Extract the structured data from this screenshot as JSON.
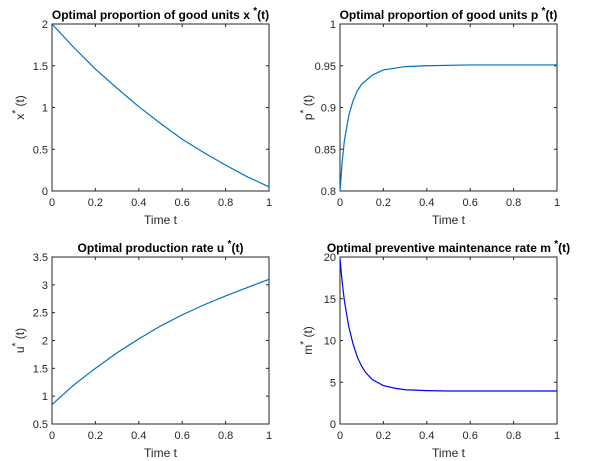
{
  "chart_data": [
    {
      "type": "line",
      "title": "Optimal proportion of good units x",
      "title_sup": "*",
      "title_suffix": "(t)",
      "xlabel": "Time t",
      "ylabel": "x",
      "ylabel_sup": "*",
      "ylabel_suffix": " (t)",
      "xlim": [
        0,
        1
      ],
      "ylim": [
        0,
        2
      ],
      "xticks": [
        0,
        0.2,
        0.4,
        0.6,
        0.8,
        1
      ],
      "xtick_labels": [
        "0",
        "0.2",
        "0.4",
        "0.6",
        "0.8",
        "1"
      ],
      "yticks": [
        0,
        0.5,
        1,
        1.5,
        2
      ],
      "ytick_labels": [
        "0",
        "0.5",
        "1",
        "1.5",
        "2"
      ],
      "grid": false,
      "series": [
        {
          "color": "#0072BD",
          "x": [
            0,
            0.1,
            0.2,
            0.3,
            0.4,
            0.5,
            0.6,
            0.7,
            0.8,
            0.9,
            1.0
          ],
          "y": [
            2.0,
            1.72,
            1.46,
            1.23,
            1.01,
            0.81,
            0.62,
            0.46,
            0.31,
            0.17,
            0.05
          ]
        }
      ]
    },
    {
      "type": "line",
      "title": "Optimal proportion of good units p",
      "title_sup": "*",
      "title_suffix": "(t)",
      "xlabel": "Time t",
      "ylabel": "p",
      "ylabel_sup": "*",
      "ylabel_suffix": " (t)",
      "xlim": [
        0,
        1
      ],
      "ylim": [
        0.8,
        1
      ],
      "xticks": [
        0,
        0.2,
        0.4,
        0.6,
        0.8,
        1
      ],
      "xtick_labels": [
        "0",
        "0.2",
        "0.4",
        "0.6",
        "0.8",
        "1"
      ],
      "yticks": [
        0.8,
        0.85,
        0.9,
        0.95,
        1
      ],
      "ytick_labels": [
        "0.8",
        "0.85",
        "0.9",
        "0.95",
        "1"
      ],
      "grid": false,
      "series": [
        {
          "color": "#0072BD",
          "x": [
            0,
            0.01,
            0.02,
            0.04,
            0.06,
            0.08,
            0.1,
            0.15,
            0.2,
            0.3,
            0.4,
            0.6,
            0.8,
            1.0
          ],
          "y": [
            0.8,
            0.835,
            0.86,
            0.89,
            0.908,
            0.92,
            0.928,
            0.939,
            0.945,
            0.949,
            0.95,
            0.951,
            0.951,
            0.951
          ]
        }
      ]
    },
    {
      "type": "line",
      "title": "Optimal production rate u",
      "title_sup": "*",
      "title_suffix": "(t)",
      "xlabel": "Time t",
      "ylabel": "u",
      "ylabel_sup": "*",
      "ylabel_suffix": " (t)",
      "xlim": [
        0,
        1
      ],
      "ylim": [
        0.5,
        3.5
      ],
      "xticks": [
        0,
        0.2,
        0.4,
        0.6,
        0.8,
        1
      ],
      "xtick_labels": [
        "0",
        "0.2",
        "0.4",
        "0.6",
        "0.8",
        "1"
      ],
      "yticks": [
        0.5,
        1,
        1.5,
        2,
        2.5,
        3,
        3.5
      ],
      "ytick_labels": [
        "0.5",
        "1",
        "1.5",
        "2",
        "2.5",
        "3",
        "3.5"
      ],
      "grid": false,
      "series": [
        {
          "color": "#0072BD",
          "x": [
            0,
            0.1,
            0.2,
            0.3,
            0.4,
            0.5,
            0.6,
            0.7,
            0.8,
            0.9,
            1.0
          ],
          "y": [
            0.85,
            1.2,
            1.5,
            1.78,
            2.03,
            2.26,
            2.46,
            2.64,
            2.8,
            2.95,
            3.1
          ]
        }
      ]
    },
    {
      "type": "line",
      "title": "Optimal preventive maintenance rate m",
      "title_sup": "*",
      "title_suffix": "(t)",
      "xlabel": "Time t",
      "ylabel": "m",
      "ylabel_sup": "*",
      "ylabel_suffix": " (t)",
      "xlim": [
        0,
        1
      ],
      "ylim": [
        0,
        20
      ],
      "xticks": [
        0,
        0.2,
        0.4,
        0.6,
        0.8,
        1
      ],
      "xtick_labels": [
        "0",
        "0.2",
        "0.4",
        "0.6",
        "0.8",
        "1"
      ],
      "yticks": [
        0,
        5,
        10,
        15,
        20
      ],
      "ytick_labels": [
        "0",
        "5",
        "10",
        "15",
        "20"
      ],
      "grid": false,
      "series": [
        {
          "color": "#0000FF",
          "x": [
            0,
            0.01,
            0.02,
            0.04,
            0.06,
            0.08,
            0.1,
            0.12,
            0.15,
            0.2,
            0.25,
            0.3,
            0.4,
            0.5,
            0.6,
            0.8,
            1.0
          ],
          "y": [
            19.8,
            17.0,
            14.8,
            11.7,
            9.6,
            8.0,
            6.9,
            6.1,
            5.3,
            4.6,
            4.3,
            4.1,
            4.0,
            3.95,
            3.95,
            3.95,
            3.95
          ]
        }
      ]
    }
  ]
}
